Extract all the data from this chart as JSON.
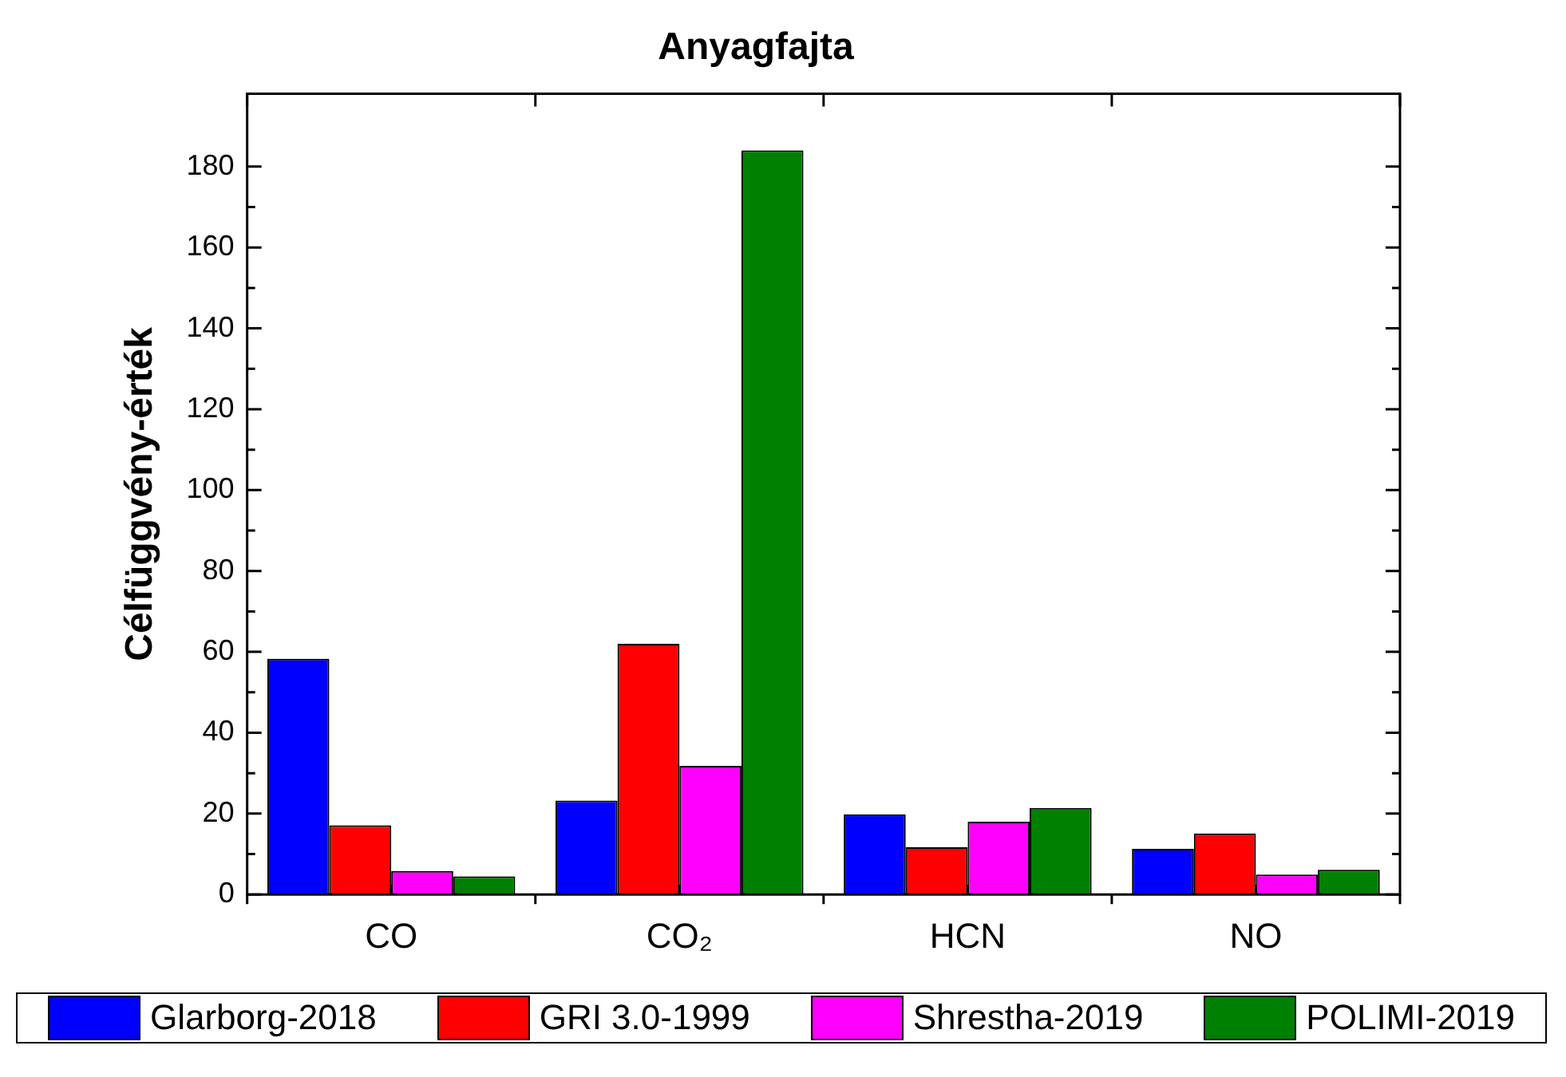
{
  "chart_data": {
    "type": "bar",
    "title": "Anyagfajta",
    "ylabel": "Célfüggvény-érték",
    "categories": [
      "CO",
      "CO₂",
      "HCN",
      "NO"
    ],
    "series": [
      {
        "name": "Glarborg-2018",
        "color": "#0000ff",
        "values": [
          58.3,
          23.2,
          19.8,
          11.3
        ]
      },
      {
        "name": "GRI 3.0-1999",
        "color": "#ff0000",
        "values": [
          17.1,
          62,
          11.7,
          15.1
        ]
      },
      {
        "name": "Shrestha-2019",
        "color": "#ff00ff",
        "values": [
          5.8,
          31.8,
          18,
          4.9
        ]
      },
      {
        "name": "POLIMI-2019",
        "color": "#008000",
        "values": [
          4.5,
          184,
          21.4,
          6.1
        ]
      }
    ],
    "ylim": [
      0,
      198
    ],
    "yticks": [
      0,
      20,
      40,
      60,
      80,
      100,
      120,
      140,
      160,
      180
    ],
    "legend": "bottom"
  }
}
